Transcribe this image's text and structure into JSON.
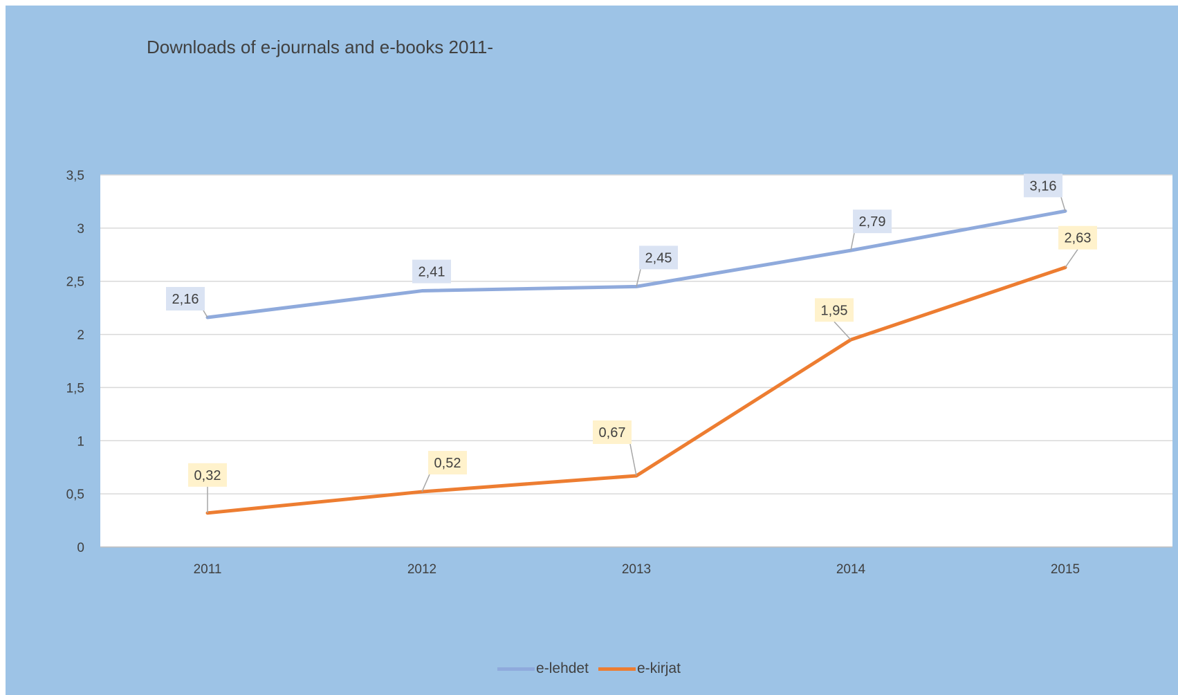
{
  "chart_data": {
    "type": "line",
    "title": "Downloads of e-journals and e-books 2011-",
    "categories": [
      "2011",
      "2012",
      "2013",
      "2014",
      "2015"
    ],
    "ylim": [
      0,
      3.5
    ],
    "yticks": [
      "0",
      "0,5",
      "1",
      "1,5",
      "2",
      "2,5",
      "3",
      "3,5"
    ],
    "grid": true,
    "legend_position": "bottom",
    "series": [
      {
        "name": "e-lehdet",
        "values": [
          2.16,
          2.41,
          2.45,
          2.79,
          3.16
        ],
        "labels": [
          "2,16",
          "2,41",
          "2,45",
          "2,79",
          "3,16"
        ],
        "color": "#8faadc",
        "label_bg": "#dae3f3"
      },
      {
        "name": "e-kirjat",
        "values": [
          0.32,
          0.52,
          0.67,
          1.95,
          2.63
        ],
        "labels": [
          "0,32",
          "0,52",
          "0,67",
          "1,95",
          "2,63"
        ],
        "color": "#ed7d31",
        "label_bg": "#fff2cc"
      }
    ]
  },
  "colors": {
    "background": "#9dc3e6",
    "plot_area": "#ffffff",
    "gridline": "#d9d9d9",
    "text": "#404040"
  }
}
